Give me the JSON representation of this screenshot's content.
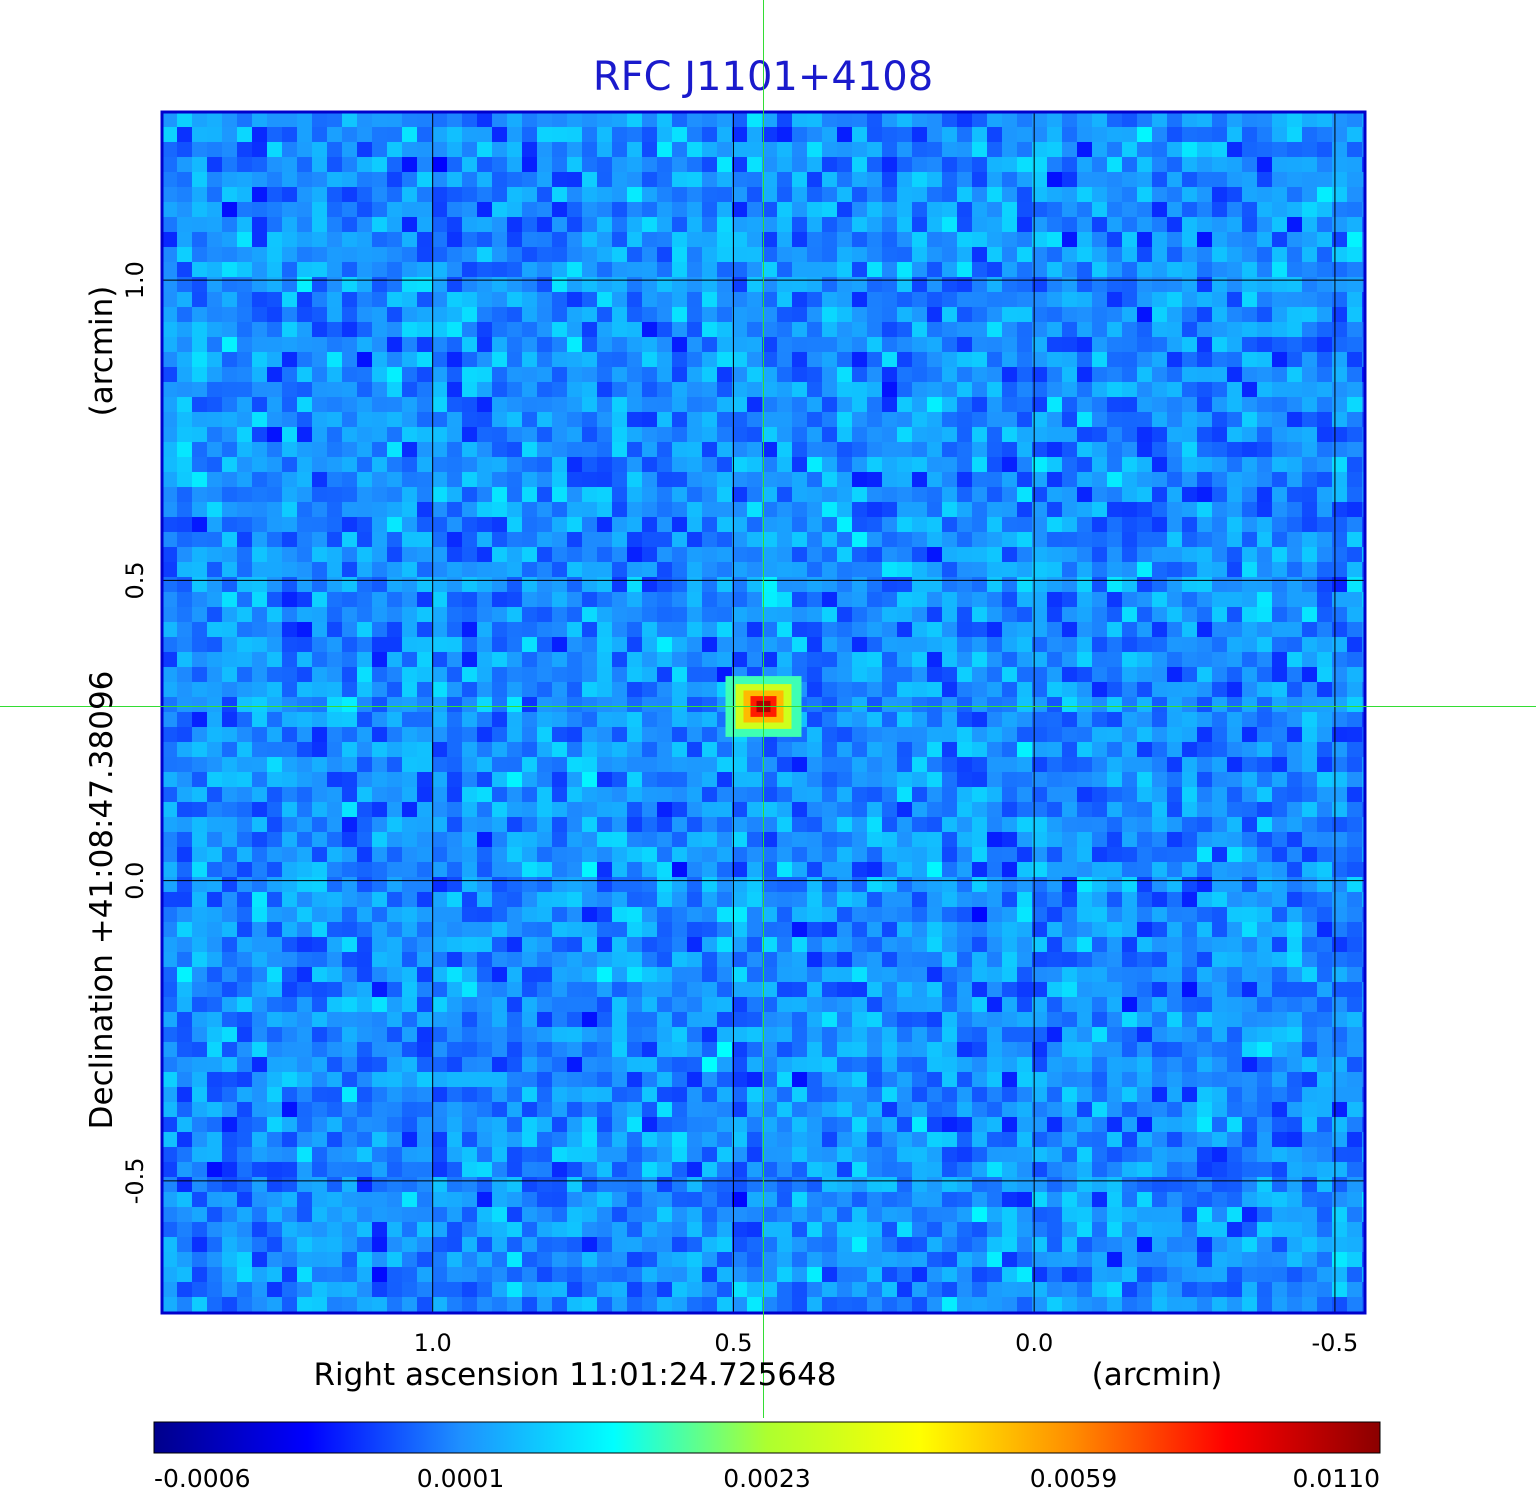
{
  "chart_data": {
    "type": "heatmap",
    "title": "RFC J1101+4108",
    "xlabel": "Right ascension  11:01:24.725648",
    "xunit": "(arcmin)",
    "ylabel": "Declination  +41:08:47.38096",
    "yunit": "(arcmin)",
    "xlim": [
      1.45,
      -0.55
    ],
    "ylim": [
      -0.72,
      1.28
    ],
    "x_ticks": [
      1.0,
      0.5,
      0.0,
      -0.5
    ],
    "x_tick_labels": [
      "1.0",
      "0.5",
      "0.0",
      "-0.5"
    ],
    "y_ticks": [
      -0.5,
      0.0,
      0.5,
      1.0
    ],
    "y_tick_labels": [
      "-0.5",
      "0.0",
      "0.5",
      "1.0"
    ],
    "grid": true,
    "crosshair": {
      "x": 0.45,
      "y": 0.29
    },
    "source": {
      "x": 0.45,
      "y": 0.29,
      "peak": 0.011
    },
    "colorbar": {
      "ticks": [
        -0.0006,
        0.0001,
        0.0023,
        0.0059,
        0.011
      ],
      "tick_labels": [
        "-0.0006",
        "0.0001",
        "0.0023",
        "0.0059",
        "0.0110"
      ],
      "colormap": [
        "#00008b",
        "#0000ff",
        "#1e90ff",
        "#00ffff",
        "#adff2f",
        "#ffff00",
        "#ff8c00",
        "#ff0000",
        "#8b0000"
      ]
    },
    "colors": {
      "title": "#1a1acc",
      "grid": "#000000",
      "crosshair": "#33dd33",
      "frame": "#0000cc"
    }
  }
}
